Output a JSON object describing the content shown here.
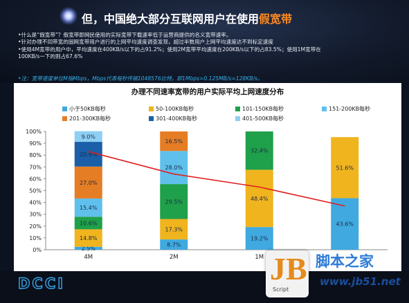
{
  "header": {
    "title_prefix": "但，中国绝大部分互联网用户在使用",
    "title_highlight": "假宽带",
    "bullets": [
      "•什么是“假宽带”？假宽带即网民使用的实际宽带下载速率低于运营商提供的名义宽带速率。",
      "•针对办理不同带宽的固网宽带用户进行的上网平均速度调查发现，超过半数用户上网平均速度达不到标定速度",
      "•使用4M宽带的用户中，平均速度在400KB/s以下的占91.2%；使用2M宽带平均速度在200KB/s以下的占83.5%；使用1M宽带在",
      "  100KB/s一下的则占67.6%"
    ],
    "note": "•注：宽带速度单位M指Mbps，Mbps代表每秒传输1048576比特。即1Mbps=0.125MB/s=128KB/s。"
  },
  "chart_data": {
    "type": "bar",
    "stacked": true,
    "title": "办理不同速率宽带的用户实际平均上网速度分布",
    "categories": [
      "4M",
      "2M",
      "1M",
      ""
    ],
    "ylim": [
      0,
      100
    ],
    "yticks": [
      "0%",
      "10%",
      "20%",
      "30%",
      "40%",
      "50%",
      "60%",
      "70%",
      "80%",
      "90%",
      "100%"
    ],
    "legend_position": "top",
    "series": [
      {
        "name": "小于50KB每秒",
        "color": "#3fa9e0",
        "values": [
          2.5,
          8.7,
          19.2,
          43.6
        ]
      },
      {
        "name": "50-100KB每秒",
        "color": "#f0b41e",
        "values": [
          14.8,
          17.3,
          48.4,
          51.6
        ]
      },
      {
        "name": "101-150KB每秒",
        "color": "#1fa04a",
        "values": [
          10.6,
          29.5,
          32.4,
          0
        ]
      },
      {
        "name": "151-200KB每秒",
        "color": "#5fc0ec",
        "values": [
          15.4,
          28.0,
          0,
          0
        ]
      },
      {
        "name": "201-300KB每秒",
        "color": "#e57d25",
        "values": [
          27.0,
          16.5,
          0,
          0
        ]
      },
      {
        "name": "301-400KB每秒",
        "color": "#1a5fa8",
        "values": [
          20.9,
          0,
          0,
          0
        ]
      },
      {
        "name": "401-500KB每秒",
        "color": "#8ecff4",
        "values": [
          9.0,
          0,
          0,
          0
        ]
      }
    ],
    "labels": [
      [
        "2.5%",
        "8.7%",
        "19.2%",
        "43.6%"
      ],
      [
        "14.8%",
        "17.3%",
        "48.4%",
        "51.6%"
      ],
      [
        "10.6%",
        "29.5%",
        "32.4%",
        ""
      ],
      [
        "15.4%",
        "28.0%",
        "",
        ""
      ],
      [
        "27.0%",
        "16.5%",
        "",
        ""
      ],
      [
        "20.9%",
        "",
        "",
        ""
      ],
      [
        "9.0%",
        "",
        "",
        ""
      ]
    ],
    "trend_line": {
      "color": "#e02020",
      "values": [
        83.0,
        64.0,
        53.0,
        37.0
      ]
    }
  },
  "footer": {
    "logo": "DCCI"
  },
  "watermark": {
    "badge": "JB",
    "badge_sub": "Script",
    "site_cn": "脚本之家",
    "site_url": "www.jb51.net"
  }
}
